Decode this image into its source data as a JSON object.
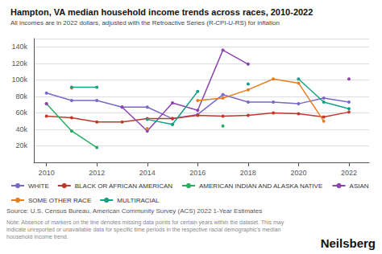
{
  "chart_data": {
    "type": "line",
    "title": "Hampton, VA median household income trends across races, 2010-2022",
    "subtitle": "All incomes are in 2022 dollars, adjusted with the Retroactive Series (R-CPI-U-RS) for inflation",
    "source": "Source: U.S. Census Bureau, American Community Survey (ACS) 2022 1-Year Estimates",
    "note": "Note: Absence of markers on the line denotes missing data points for certain years within the dataset. This may indicate unreported or unavailable data for specific time periods in the respective racial demographic's median household income trend.",
    "annotations": [
      {
        "text": "Neilsberg"
      }
    ],
    "x": [
      2010,
      2011,
      2012,
      2013,
      2014,
      2015,
      2016,
      2017,
      2018,
      2019,
      2020,
      2021,
      2022
    ],
    "series": [
      {
        "name": "WHITE",
        "color": "#7b68c8",
        "values": [
          84000,
          75000,
          75000,
          67000,
          67000,
          53000,
          58000,
          82000,
          73000,
          73000,
          71000,
          78000,
          73000
        ]
      },
      {
        "name": "BLACK OR AFRICAN AMERICAN",
        "color": "#c0392b",
        "values": [
          56000,
          54000,
          49000,
          49000,
          53000,
          53000,
          57000,
          56000,
          57000,
          60000,
          59000,
          55000,
          61000
        ]
      },
      {
        "name": "AMERICAN INDIAN AND ALASKA NATIVE",
        "color": "#27ae60",
        "values": [
          71000,
          38000,
          18000,
          null,
          null,
          46000,
          null,
          44000,
          null,
          null,
          null,
          null,
          null
        ]
      },
      {
        "name": "ASIAN",
        "color": "#8e44ad",
        "values": [
          71000,
          null,
          null,
          67000,
          38000,
          72000,
          63000,
          136000,
          119000,
          null,
          null,
          null,
          101000
        ]
      },
      {
        "name": "SOME OTHER RACE",
        "color": "#e67e22",
        "values": [
          null,
          90000,
          null,
          null,
          41000,
          null,
          75000,
          78000,
          88000,
          101000,
          96000,
          50000,
          null
        ]
      },
      {
        "name": "MULTIRACIAL",
        "color": "#16a085",
        "values": [
          null,
          91000,
          91000,
          null,
          52000,
          46000,
          86000,
          null,
          95000,
          null,
          101000,
          73000,
          65000
        ]
      }
    ],
    "xlim": [
      2009.5,
      2022.8
    ],
    "xticks": [
      2010,
      2012,
      2014,
      2016,
      2018,
      2020,
      2022
    ],
    "ylim": [
      0,
      150000
    ],
    "yticks": [
      {
        "value": 20000,
        "label": "20k"
      },
      {
        "value": 40000,
        "label": "40k"
      },
      {
        "value": 60000,
        "label": "60k"
      },
      {
        "value": 80000,
        "label": "80k"
      },
      {
        "value": 100000,
        "label": "100k"
      },
      {
        "value": 120000,
        "label": "120k"
      },
      {
        "value": 140000,
        "label": "140k"
      }
    ],
    "grid": true,
    "legend": "bottom",
    "marker": "circle"
  }
}
